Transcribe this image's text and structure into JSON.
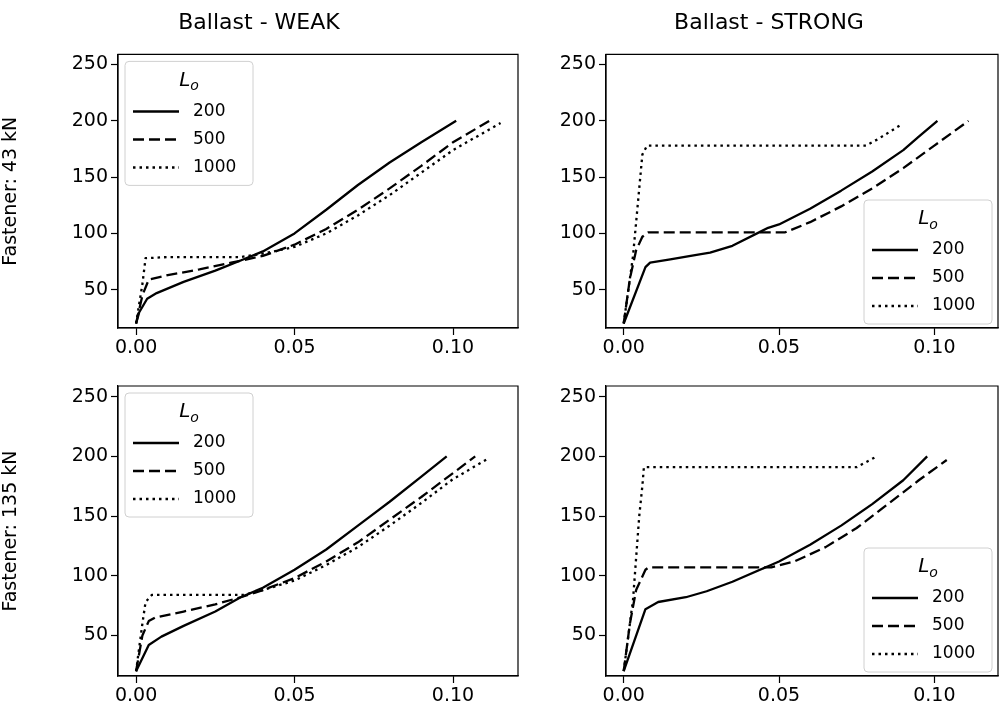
{
  "chart_data": [
    {
      "type": "line",
      "title": "Ballast - WEAK",
      "ylabel": "Fastener: 43 kN",
      "legend_title": "L$_{o}$",
      "legend": "top left",
      "grid": false,
      "marker": "none",
      "xlim": [
        -0.0057,
        0.1205
      ],
      "ylim": [
        16,
        259
      ],
      "xticks": [
        {
          "value": 0,
          "label": "0.00"
        },
        {
          "value": 0.05,
          "label": "0.05"
        },
        {
          "value": 0.1,
          "label": "0.10"
        }
      ],
      "yticks": [
        50,
        100,
        150,
        200,
        250
      ],
      "series": [
        {
          "name": "200",
          "color": "#000000",
          "line_style": "solid",
          "x": [
            0,
            0.001,
            0.0035,
            0.0065,
            0.015,
            0.025,
            0.033,
            0.04,
            0.05,
            0.06,
            0.07,
            0.08,
            0.09,
            0.101
          ],
          "values": [
            20,
            30,
            42,
            47,
            57,
            67,
            76,
            84,
            100,
            121,
            143,
            163,
            181,
            200
          ]
        },
        {
          "name": "500",
          "color": "#000000",
          "line_style": "dashed",
          "x": [
            0,
            0.002,
            0.004,
            0.01,
            0.02,
            0.03,
            0.04,
            0.05,
            0.06,
            0.07,
            0.08,
            0.09,
            0.1,
            0.1115
          ],
          "values": [
            20,
            45,
            59,
            63,
            68,
            74,
            80,
            90,
            104,
            121,
            140,
            160,
            181,
            200
          ]
        },
        {
          "name": "1000",
          "color": "#000000",
          "line_style": "dotted",
          "x": [
            0,
            0.002,
            0.003,
            0.01,
            0.033,
            0.04,
            0.05,
            0.06,
            0.07,
            0.08,
            0.09,
            0.1,
            0.115
          ],
          "values": [
            20,
            55,
            78,
            79,
            79,
            82,
            88,
            100,
            116,
            134,
            154,
            174,
            198
          ]
        }
      ]
    },
    {
      "type": "line",
      "title": "Ballast - STRONG",
      "legend_title": "L$_{o}$",
      "legend": "bottom right",
      "grid": false,
      "marker": "none",
      "xlim": [
        -0.0057,
        0.1205
      ],
      "ylim": [
        16,
        259
      ],
      "xticks": [
        {
          "value": 0,
          "label": "0.00"
        },
        {
          "value": 0.05,
          "label": "0.05"
        },
        {
          "value": 0.1,
          "label": "0.10"
        }
      ],
      "yticks": [
        50,
        100,
        150,
        200,
        250
      ],
      "series": [
        {
          "name": "200",
          "color": "#000000",
          "line_style": "solid",
          "x": [
            0,
            0.007,
            0.0085,
            0.015,
            0.0278,
            0.035,
            0.0465,
            0.05,
            0.06,
            0.07,
            0.08,
            0.09,
            0.095,
            0.101
          ],
          "values": [
            20,
            70,
            74,
            77,
            83,
            89,
            105,
            108,
            122,
            138,
            155,
            174,
            186,
            200
          ]
        },
        {
          "name": "500",
          "color": "#000000",
          "line_style": "dashed",
          "x": [
            0,
            0.002,
            0.004,
            0.006,
            0.008,
            0.052,
            0.06,
            0.07,
            0.08,
            0.09,
            0.1,
            0.111
          ],
          "values": [
            20,
            60,
            85,
            97,
            101,
            101,
            110,
            124,
            140,
            158,
            178,
            200
          ]
        },
        {
          "name": "1000",
          "color": "#000000",
          "line_style": "dotted",
          "x": [
            0,
            0.003,
            0.005,
            0.006,
            0.0075,
            0.078,
            0.082,
            0.089
          ],
          "values": [
            20,
            80,
            140,
            170,
            178,
            178,
            184,
            196
          ]
        }
      ]
    },
    {
      "type": "line",
      "ylabel": "Fastener: 135 kN",
      "legend_title": "L$_{o}$",
      "legend": "top left",
      "grid": false,
      "marker": "none",
      "xlim": [
        -0.0057,
        0.1205
      ],
      "ylim": [
        16,
        259
      ],
      "xticks": [
        {
          "value": 0,
          "label": "0.00"
        },
        {
          "value": 0.05,
          "label": "0.05"
        },
        {
          "value": 0.1,
          "label": "0.10"
        }
      ],
      "yticks": [
        50,
        100,
        150,
        200,
        250
      ],
      "series": [
        {
          "name": "200",
          "color": "#000000",
          "line_style": "solid",
          "x": [
            0,
            0.004,
            0.008,
            0.015,
            0.025,
            0.033,
            0.04,
            0.05,
            0.06,
            0.07,
            0.08,
            0.09,
            0.098
          ],
          "values": [
            20,
            42,
            49,
            58,
            70,
            82,
            90,
            105,
            122,
            142,
            162,
            183,
            200
          ]
        },
        {
          "name": "500",
          "color": "#000000",
          "line_style": "dashed",
          "x": [
            0,
            0.002,
            0.004,
            0.006,
            0.015,
            0.025,
            0.033,
            0.04,
            0.05,
            0.06,
            0.07,
            0.08,
            0.09,
            0.1,
            0.107
          ],
          "values": [
            20,
            50,
            62,
            65,
            70,
            76,
            82,
            88,
            98,
            112,
            128,
            147,
            166,
            186,
            200
          ]
        },
        {
          "name": "1000",
          "color": "#000000",
          "line_style": "dotted",
          "x": [
            0,
            0.002,
            0.003,
            0.005,
            0.034,
            0.04,
            0.05,
            0.06,
            0.07,
            0.08,
            0.09,
            0.1,
            0.111
          ],
          "values": [
            20,
            60,
            78,
            84,
            84,
            88,
            96,
            109,
            124,
            142,
            161,
            181,
            198
          ]
        }
      ]
    },
    {
      "type": "line",
      "legend_title": "L$_{o}$",
      "legend": "bottom right",
      "grid": false,
      "marker": "none",
      "xlim": [
        -0.0057,
        0.1205
      ],
      "ylim": [
        16,
        259
      ],
      "xticks": [
        {
          "value": 0,
          "label": "0.00"
        },
        {
          "value": 0.05,
          "label": "0.05"
        },
        {
          "value": 0.1,
          "label": "0.10"
        }
      ],
      "yticks": [
        50,
        100,
        150,
        200,
        250
      ],
      "series": [
        {
          "name": "200",
          "color": "#000000",
          "line_style": "solid",
          "x": [
            0,
            0.007,
            0.0111,
            0.02,
            0.0267,
            0.035,
            0.0465,
            0.05,
            0.06,
            0.07,
            0.08,
            0.09,
            0.0977
          ],
          "values": [
            20,
            72,
            78,
            82,
            87,
            95,
            108,
            112,
            126,
            142,
            160,
            180,
            200
          ]
        },
        {
          "name": "500",
          "color": "#000000",
          "line_style": "dashed",
          "x": [
            0,
            0.002,
            0.004,
            0.007,
            0.008,
            0.0475,
            0.055,
            0.065,
            0.075,
            0.085,
            0.095,
            0.104
          ],
          "values": [
            20,
            60,
            88,
            105,
            107,
            107,
            112,
            124,
            140,
            160,
            180,
            197
          ]
        },
        {
          "name": "1000",
          "color": "#000000",
          "line_style": "dotted",
          "x": [
            0,
            0.003,
            0.005,
            0.006,
            0.0065,
            0.075,
            0.08,
            0.0815
          ],
          "values": [
            20,
            80,
            150,
            175,
            191,
            191,
            198,
            200
          ]
        }
      ]
    }
  ]
}
